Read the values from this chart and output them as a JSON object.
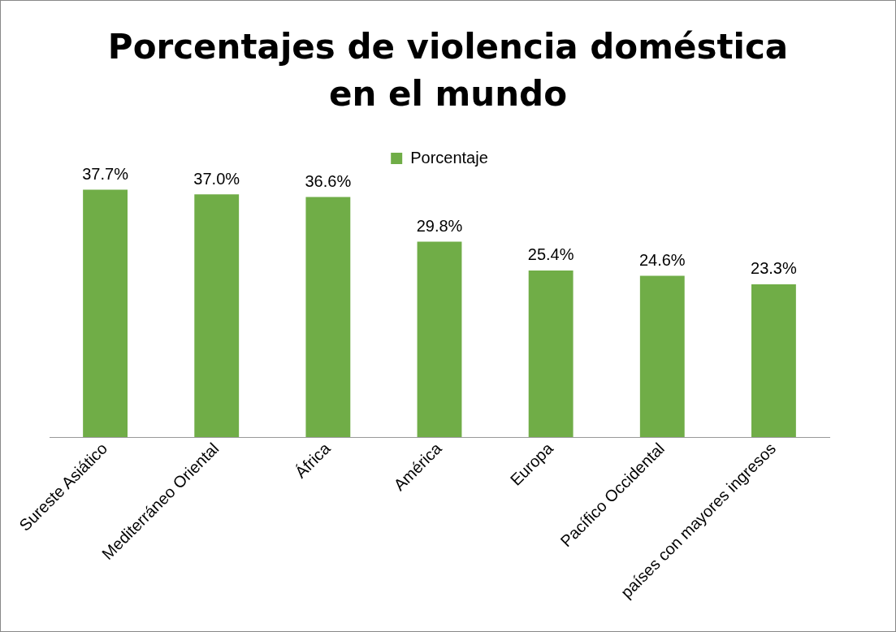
{
  "chart_data": {
    "type": "bar",
    "title": "Porcentajes de violencia doméstica en el mundo",
    "categories": [
      "Sureste Asiático",
      "Mediterráneo Oriental",
      "África",
      "América",
      "Europa",
      "Pacífico Occidental",
      "países con mayores ingresos"
    ],
    "series": [
      {
        "name": "Porcentaje",
        "color": "#70ad47",
        "values": [
          37.7,
          37.0,
          36.6,
          29.8,
          25.4,
          24.6,
          23.3
        ],
        "value_labels": [
          "37.7%",
          "37.0%",
          "36.6%",
          "29.8%",
          "25.4%",
          "24.6%",
          "23.3%"
        ]
      }
    ],
    "legend": "top",
    "grid": false
  }
}
